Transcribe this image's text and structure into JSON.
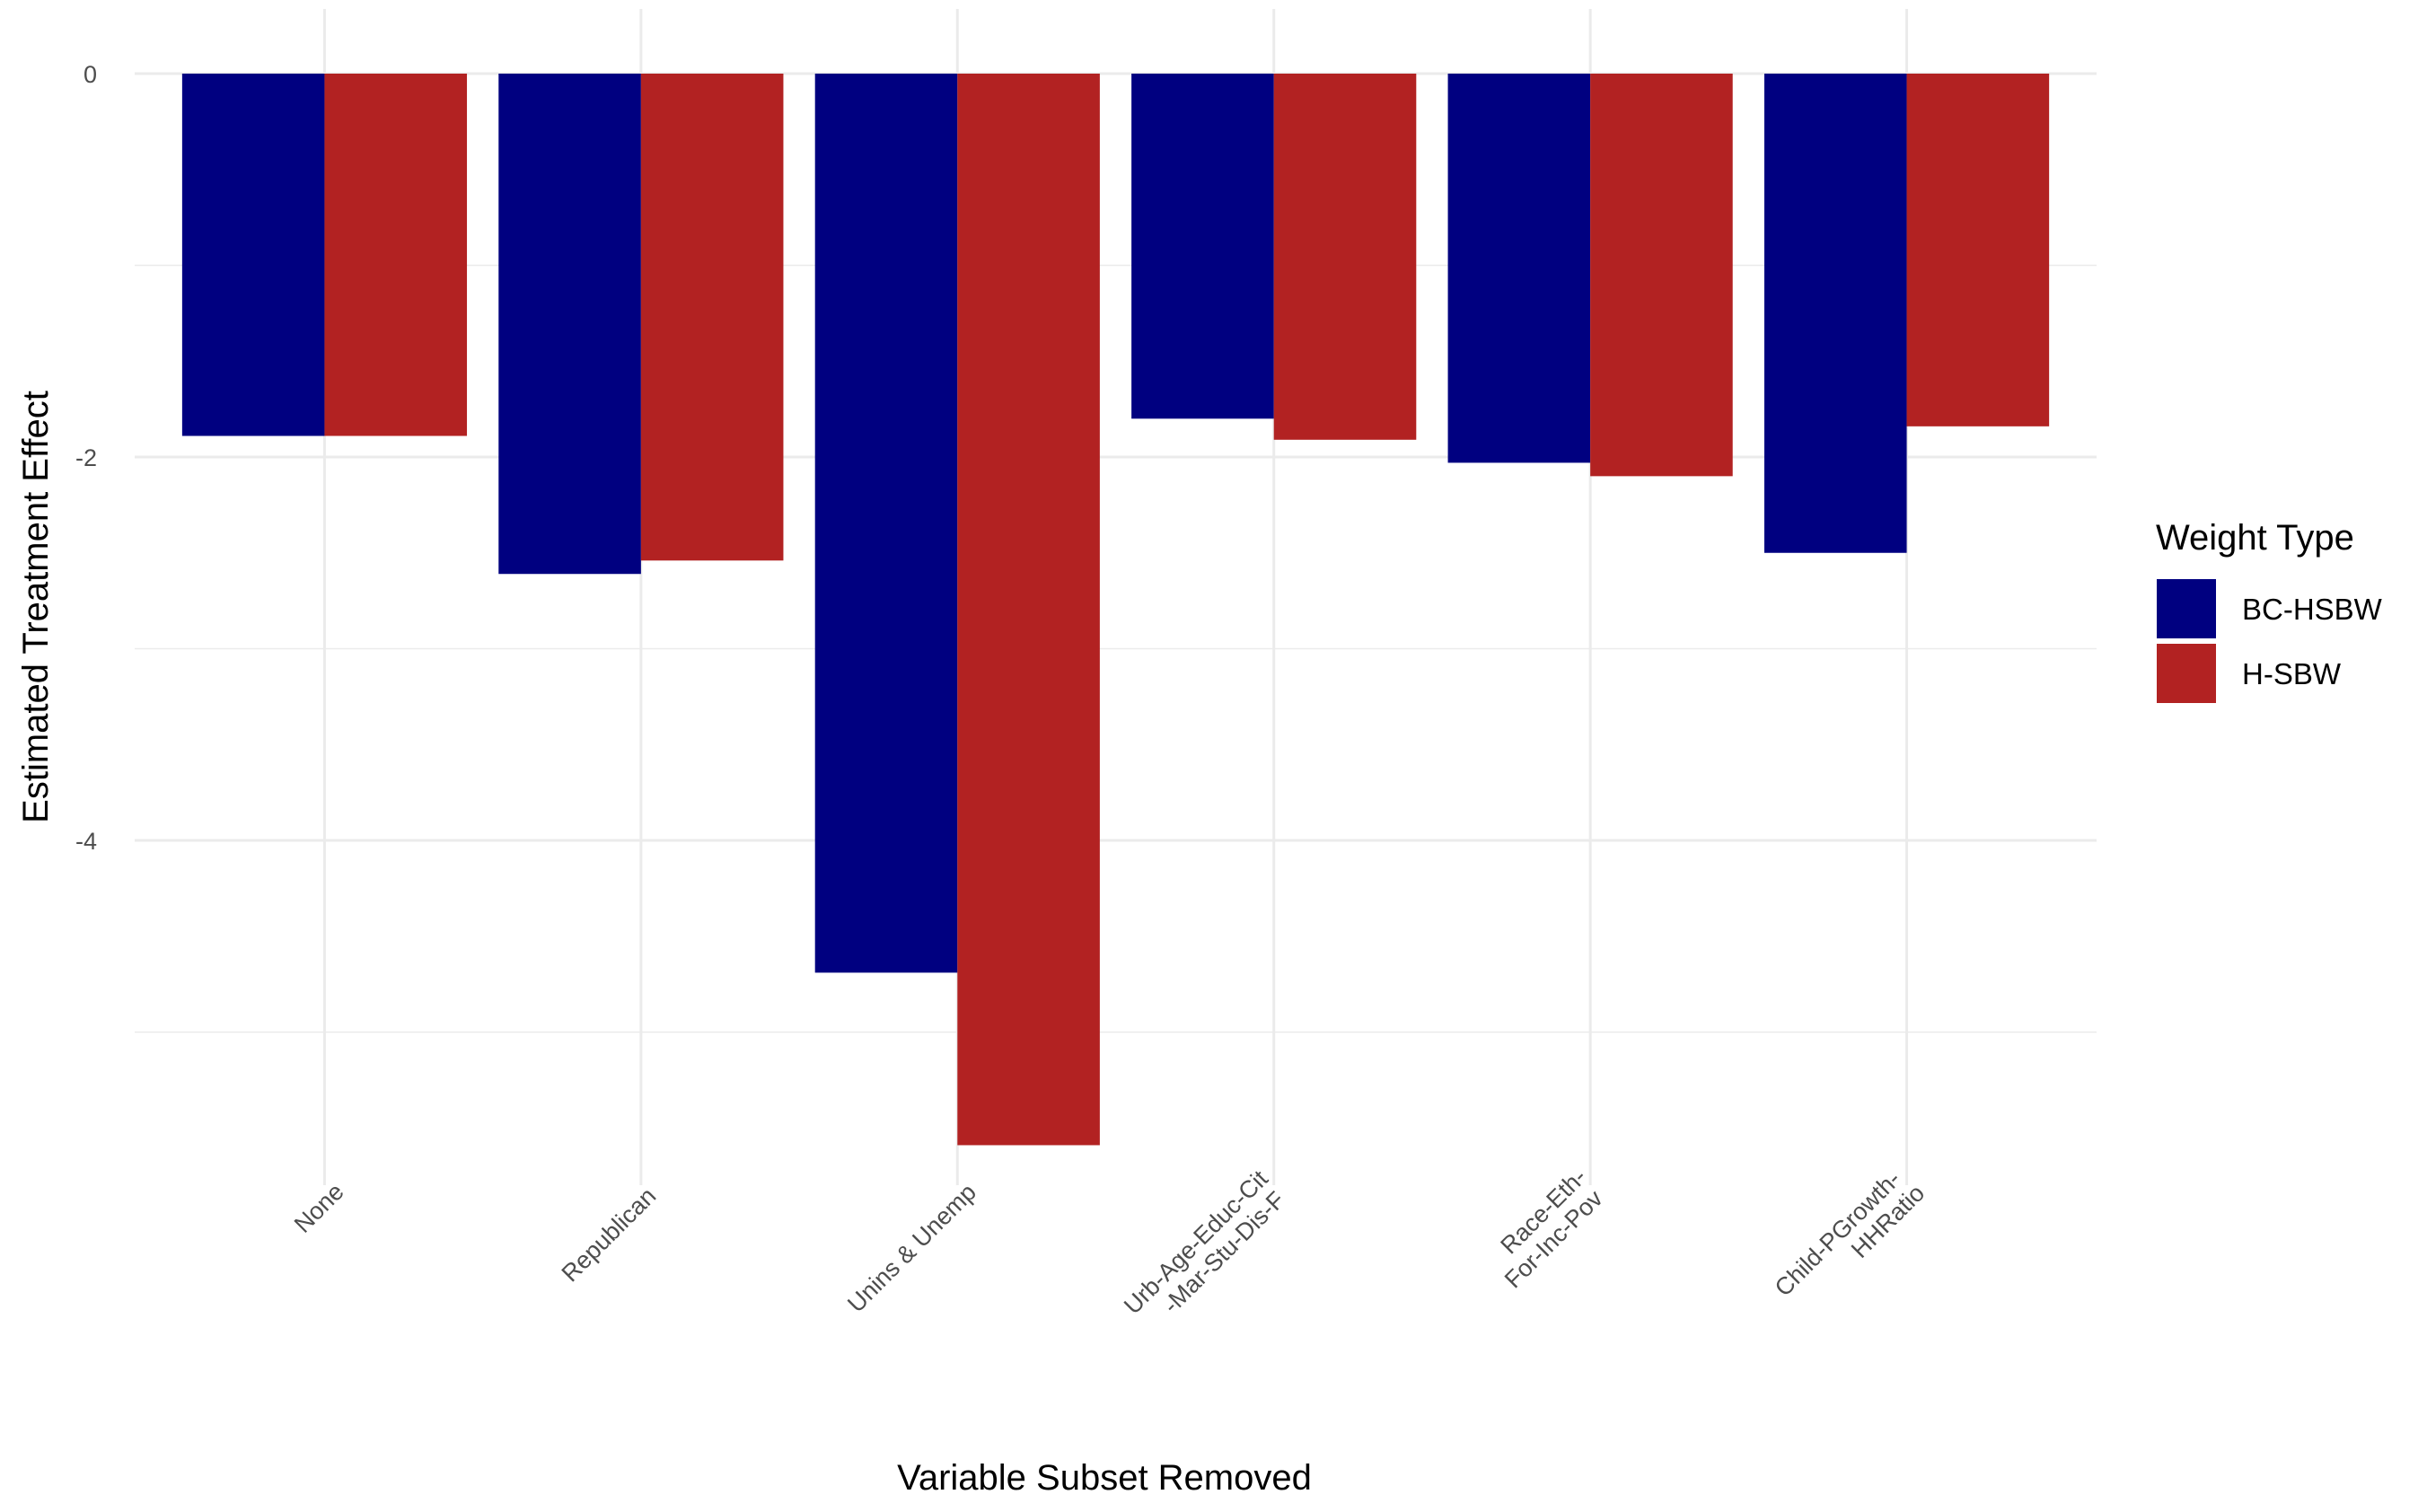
{
  "chart_data": {
    "type": "bar",
    "xlabel": "Variable Subset Removed",
    "ylabel": "Estimated Treatment Effect",
    "ylim": [
      -5.75,
      0.3
    ],
    "yticks": [
      0,
      -2,
      -4
    ],
    "grid": true,
    "legend_position": "right",
    "legend_title": "Weight Type",
    "categories": [
      [
        "None"
      ],
      [
        "Republican"
      ],
      [
        "Unins & Unemp"
      ],
      [
        "Urb-Age-Educ-Cit",
        "-Mar-Stu-Dis-F"
      ],
      [
        "Race-Eth-",
        "For-Inc-Pov"
      ],
      [
        "Child-PGrowth-",
        "HHRatio"
      ]
    ],
    "series": [
      {
        "name": "BC-HSBW",
        "color": "#000080",
        "values": [
          -1.89,
          -2.61,
          -4.69,
          -1.8,
          -2.03,
          -2.5
        ]
      },
      {
        "name": "H-SBW",
        "color": "#B22222",
        "values": [
          -1.89,
          -2.54,
          -5.59,
          -1.91,
          -2.1,
          -1.84
        ]
      }
    ]
  }
}
